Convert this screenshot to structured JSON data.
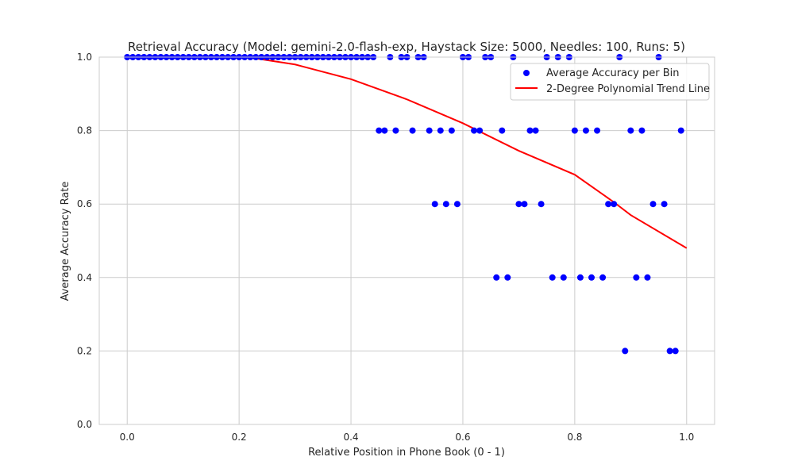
{
  "chart_data": {
    "type": "scatter",
    "title": "Retrieval Accuracy (Model: gemini-2.0-flash-exp, Haystack Size: 5000, Needles: 100, Runs: 5)",
    "xlabel": "Relative Position in Phone Book (0 - 1)",
    "ylabel": "Average Accuracy Rate",
    "xlim": [
      -0.05,
      1.05
    ],
    "ylim": [
      0.0,
      1.0
    ],
    "x_ticks": [
      "0.0",
      "0.2",
      "0.4",
      "0.6",
      "0.8",
      "1.0"
    ],
    "y_ticks": [
      "0.0",
      "0.2",
      "0.4",
      "0.6",
      "0.8",
      "1.0"
    ],
    "grid": true,
    "legend_position": "upper right",
    "series": [
      {
        "name": "Average Accuracy per Bin",
        "kind": "scatter",
        "color": "#0000ff",
        "points": [
          [
            0.0,
            1.0
          ],
          [
            0.01,
            1.0
          ],
          [
            0.02,
            1.0
          ],
          [
            0.03,
            1.0
          ],
          [
            0.04,
            1.0
          ],
          [
            0.05,
            1.0
          ],
          [
            0.06,
            1.0
          ],
          [
            0.07,
            1.0
          ],
          [
            0.08,
            1.0
          ],
          [
            0.09,
            1.0
          ],
          [
            0.1,
            1.0
          ],
          [
            0.11,
            1.0
          ],
          [
            0.12,
            1.0
          ],
          [
            0.13,
            1.0
          ],
          [
            0.14,
            1.0
          ],
          [
            0.15,
            1.0
          ],
          [
            0.16,
            1.0
          ],
          [
            0.17,
            1.0
          ],
          [
            0.18,
            1.0
          ],
          [
            0.19,
            1.0
          ],
          [
            0.2,
            1.0
          ],
          [
            0.21,
            1.0
          ],
          [
            0.22,
            1.0
          ],
          [
            0.23,
            1.0
          ],
          [
            0.24,
            1.0
          ],
          [
            0.25,
            1.0
          ],
          [
            0.26,
            1.0
          ],
          [
            0.27,
            1.0
          ],
          [
            0.28,
            1.0
          ],
          [
            0.29,
            1.0
          ],
          [
            0.3,
            1.0
          ],
          [
            0.31,
            1.0
          ],
          [
            0.32,
            1.0
          ],
          [
            0.33,
            1.0
          ],
          [
            0.34,
            1.0
          ],
          [
            0.35,
            1.0
          ],
          [
            0.36,
            1.0
          ],
          [
            0.37,
            1.0
          ],
          [
            0.38,
            1.0
          ],
          [
            0.39,
            1.0
          ],
          [
            0.4,
            1.0
          ],
          [
            0.41,
            1.0
          ],
          [
            0.42,
            1.0
          ],
          [
            0.43,
            1.0
          ],
          [
            0.44,
            1.0
          ],
          [
            0.45,
            0.8
          ],
          [
            0.46,
            0.8
          ],
          [
            0.47,
            1.0
          ],
          [
            0.48,
            0.8
          ],
          [
            0.49,
            1.0
          ],
          [
            0.5,
            1.0
          ],
          [
            0.51,
            0.8
          ],
          [
            0.52,
            1.0
          ],
          [
            0.53,
            1.0
          ],
          [
            0.54,
            0.8
          ],
          [
            0.55,
            0.6
          ],
          [
            0.56,
            0.8
          ],
          [
            0.57,
            0.6
          ],
          [
            0.58,
            0.8
          ],
          [
            0.59,
            0.6
          ],
          [
            0.6,
            1.0
          ],
          [
            0.61,
            1.0
          ],
          [
            0.62,
            0.8
          ],
          [
            0.63,
            0.8
          ],
          [
            0.64,
            1.0
          ],
          [
            0.65,
            1.0
          ],
          [
            0.66,
            0.4
          ],
          [
            0.67,
            0.8
          ],
          [
            0.68,
            0.4
          ],
          [
            0.69,
            1.0
          ],
          [
            0.7,
            0.6
          ],
          [
            0.71,
            0.6
          ],
          [
            0.72,
            0.8
          ],
          [
            0.73,
            0.8
          ],
          [
            0.74,
            0.6
          ],
          [
            0.75,
            1.0
          ],
          [
            0.76,
            0.4
          ],
          [
            0.77,
            1.0
          ],
          [
            0.78,
            0.4
          ],
          [
            0.79,
            1.0
          ],
          [
            0.8,
            0.8
          ],
          [
            0.81,
            0.4
          ],
          [
            0.82,
            0.8
          ],
          [
            0.83,
            0.4
          ],
          [
            0.84,
            0.8
          ],
          [
            0.85,
            0.4
          ],
          [
            0.86,
            0.6
          ],
          [
            0.87,
            0.6
          ],
          [
            0.88,
            1.0
          ],
          [
            0.89,
            0.2
          ],
          [
            0.9,
            0.8
          ],
          [
            0.91,
            0.4
          ],
          [
            0.92,
            0.8
          ],
          [
            0.93,
            0.4
          ],
          [
            0.94,
            0.6
          ],
          [
            0.95,
            1.0
          ],
          [
            0.96,
            0.6
          ],
          [
            0.97,
            0.2
          ],
          [
            0.98,
            0.2
          ],
          [
            0.99,
            0.8
          ]
        ]
      },
      {
        "name": "2-Degree Polynomial Trend Line",
        "kind": "line",
        "color": "#ff0000",
        "points": [
          [
            0.0,
            1.0
          ],
          [
            0.05,
            1.0
          ],
          [
            0.1,
            1.0
          ],
          [
            0.15,
            1.0
          ],
          [
            0.2,
            1.0
          ],
          [
            0.215,
            1.0
          ],
          [
            0.3,
            0.98
          ],
          [
            0.4,
            0.94
          ],
          [
            0.5,
            0.885
          ],
          [
            0.6,
            0.82
          ],
          [
            0.7,
            0.745
          ],
          [
            0.8,
            0.68
          ],
          [
            0.87,
            0.605
          ],
          [
            0.9,
            0.57
          ],
          [
            1.0,
            0.48
          ]
        ]
      }
    ]
  }
}
